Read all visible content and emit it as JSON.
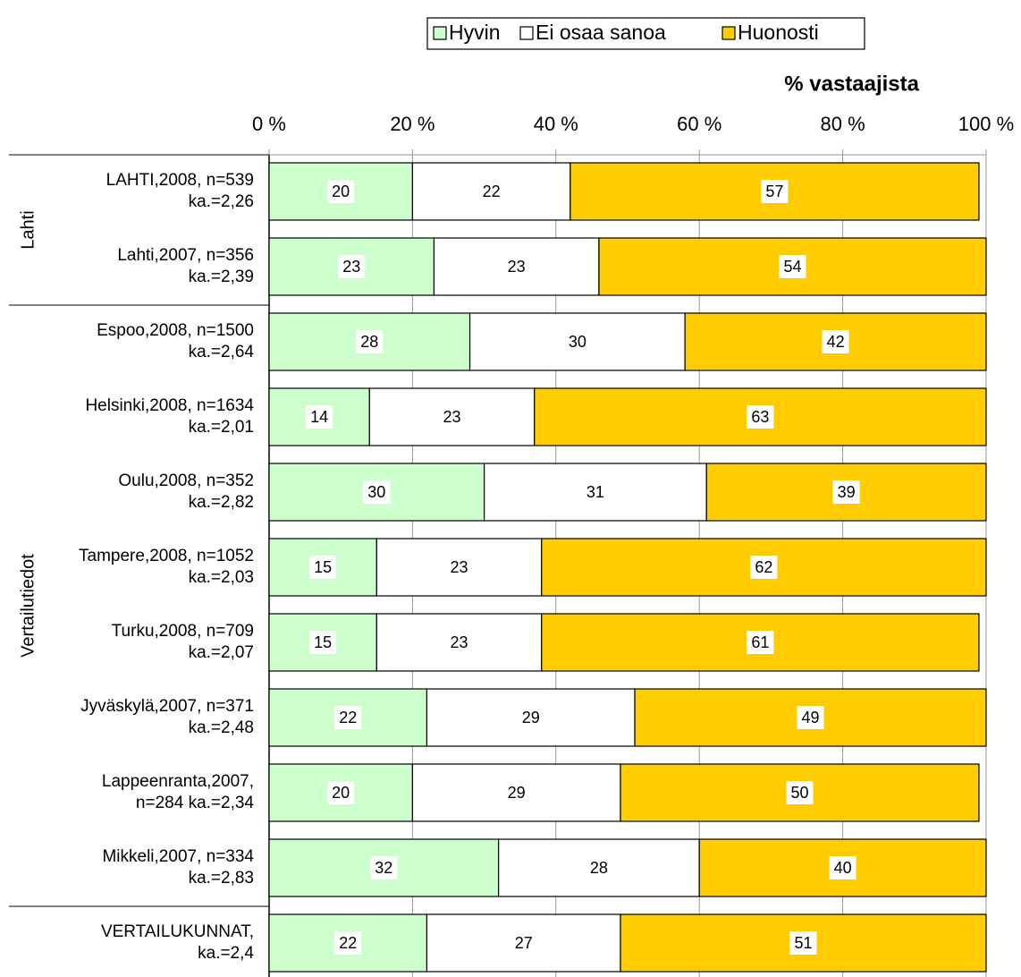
{
  "chart_data": {
    "type": "stacked_barh",
    "xlabel": "% vastaajista",
    "categories": [
      [
        "LAHTI,2008, n=539",
        "ka.=2,26"
      ],
      [
        "Lahti,2007, n=356",
        "ka.=2,39"
      ],
      [
        "Espoo,2008, n=1500",
        "ka.=2,64"
      ],
      [
        "Helsinki,2008, n=1634",
        "ka.=2,01"
      ],
      [
        "Oulu,2008, n=352",
        "ka.=2,82"
      ],
      [
        "Tampere,2008, n=1052",
        "ka.=2,03"
      ],
      [
        "Turku,2008, n=709",
        "ka.=2,07"
      ],
      [
        "Jyväskylä,2007, n=371",
        "ka.=2,48"
      ],
      [
        "Lappeenranta,2007,",
        "n=284 ka.=2,34"
      ],
      [
        "Mikkeli,2007, n=334",
        "ka.=2,83"
      ],
      [
        "VERTAILUKUNNAT,",
        "ka.=2,4"
      ]
    ],
    "groups": [
      "Lahti",
      "Vertailutiedot"
    ],
    "series": [
      {
        "name": "Hyvin",
        "color": "#ccffcc",
        "values": [
          20,
          23,
          28,
          14,
          30,
          15,
          15,
          22,
          20,
          32,
          22
        ]
      },
      {
        "name": "Ei osaa sanoa",
        "color": "#ffffff",
        "values": [
          22,
          23,
          30,
          23,
          31,
          23,
          23,
          29,
          29,
          28,
          27
        ]
      },
      {
        "name": "Huonosti",
        "color": "#ffcc00",
        "values": [
          57,
          54,
          42,
          63,
          39,
          62,
          61,
          49,
          50,
          40,
          51
        ]
      }
    ],
    "xlim": [
      0,
      100
    ],
    "xticks": [
      {
        "value": 0,
        "label": "0 %"
      },
      {
        "value": 20,
        "label": "20 %"
      },
      {
        "value": 40,
        "label": "40 %"
      },
      {
        "value": 60,
        "label": "60 %"
      },
      {
        "value": 80,
        "label": "80 %"
      },
      {
        "value": 100,
        "label": "100 %"
      }
    ],
    "grid": true,
    "legend": "top"
  }
}
